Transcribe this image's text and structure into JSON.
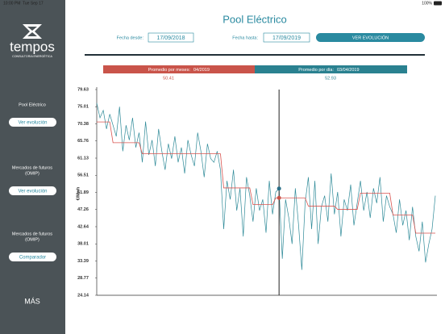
{
  "status_bar": {
    "time": "10:00 PM",
    "date": "Tue Sep 17",
    "battery": "100%"
  },
  "sidebar": {
    "logo": "tempos",
    "tagline": "CONSULTORIA ENERGÉTICA",
    "sections": [
      {
        "title": [
          "Pool Eléctrico"
        ],
        "button": "Ver evolución"
      },
      {
        "title": [
          "Mercados de futuros",
          "(OMIP)"
        ],
        "button": "Ver evolución"
      },
      {
        "title": [
          "Mercados de futuros",
          "(OMIP)"
        ],
        "button": "Comparador"
      }
    ],
    "more": "MÁS"
  },
  "header": {
    "title": "Pool Eléctrico",
    "from_label": "Fecha desde:",
    "from_date": "17/09/2018",
    "to_label": "Fecha hasta:",
    "to_date": "17/09/2019",
    "button": "VER EVOLUCIÓN"
  },
  "summary": {
    "month_label": "Promedio por meses:",
    "month": "04/2019",
    "day_label": "Promedio por día:",
    "day": "03/04/2019"
  },
  "chart_data": {
    "type": "line",
    "y_label": "€/Mwh",
    "ylim": [
      24.14,
      79.63
    ],
    "yticks": [
      79.63,
      75.01,
      70.38,
      65.76,
      61.13,
      56.51,
      51.89,
      47.26,
      42.64,
      38.01,
      33.39,
      28.77,
      24.14
    ],
    "series": [
      {
        "color": "#2e8a98",
        "values": [
          76,
          72,
          74,
          69,
          73,
          70,
          67,
          75,
          63,
          70,
          66,
          72,
          64,
          68,
          60,
          71,
          62,
          66,
          59,
          69,
          63,
          58,
          65,
          61,
          67,
          60,
          64,
          57,
          66,
          62,
          59,
          68,
          63,
          56,
          65,
          61,
          60,
          63,
          58,
          42,
          55,
          50,
          58,
          47,
          53,
          40,
          56,
          51,
          44,
          53,
          47,
          50,
          41,
          55,
          46,
          52,
          52.93,
          34,
          50,
          45,
          38,
          53,
          43,
          31,
          49,
          56,
          42,
          55,
          38,
          48,
          51,
          44,
          57,
          46,
          52,
          40,
          50,
          47,
          54,
          43,
          49,
          55,
          47,
          52,
          45,
          53,
          49,
          56,
          44,
          51,
          48,
          46,
          41,
          50,
          43,
          47,
          39,
          48,
          40,
          36,
          44,
          33,
          38,
          42,
          51
        ]
      },
      {
        "color": "#d9534f",
        "values": [
          70.9,
          70.9,
          70.9,
          70.9,
          70.9,
          65.3,
          65.3,
          65.3,
          65.3,
          65.3,
          65.3,
          65.3,
          65.3,
          65.3,
          62.3,
          62.3,
          62.3,
          62.3,
          62.3,
          62.3,
          62.3,
          62.3,
          62.3,
          62.3,
          62.3,
          62.3,
          62.3,
          62.3,
          62.3,
          62.3,
          62.3,
          62.3,
          62.3,
          62.3,
          62.3,
          62.3,
          62.3,
          62.3,
          62.3,
          53.1,
          53.1,
          53.1,
          53.1,
          53.1,
          53.1,
          53.1,
          53.1,
          53.1,
          48.6,
          48.6,
          48.6,
          48.6,
          48.6,
          48.6,
          48.6,
          50.41,
          50.41,
          50.41,
          50.41,
          50.41,
          50.41,
          50.41,
          50.41,
          50.41,
          50.41,
          48.2,
          48.2,
          48.2,
          48.2,
          48.2,
          48.2,
          48.2,
          48.2,
          48.2,
          47.3,
          47.3,
          47.3,
          47.3,
          47.3,
          47.3,
          47.3,
          51.7,
          51.7,
          51.7,
          51.7,
          51.7,
          51.7,
          51.7,
          51.7,
          51.7,
          51.7,
          45.8,
          45.8,
          45.8,
          45.8,
          45.8,
          45.8,
          45.8,
          40.9,
          40.9,
          40.9,
          40.9,
          40.9,
          40.9,
          40.9
        ]
      }
    ]
  }
}
